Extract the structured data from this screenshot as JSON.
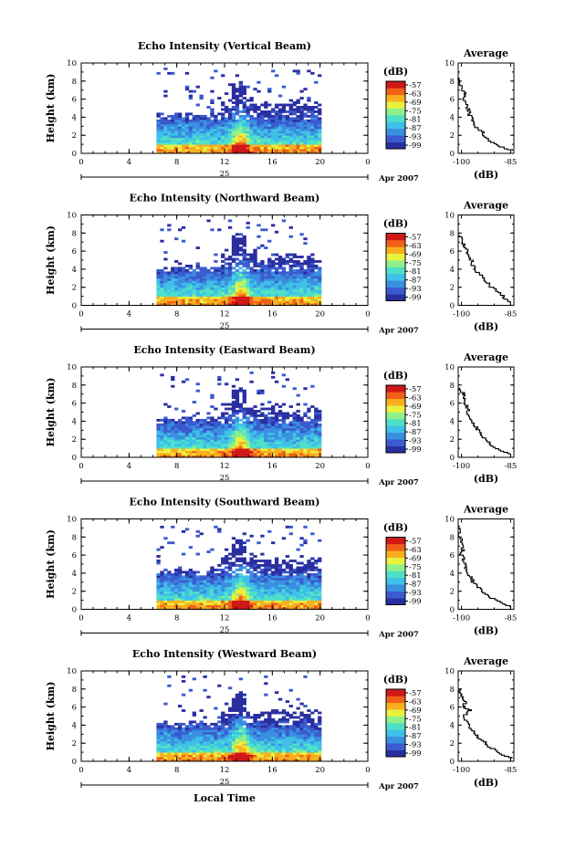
{
  "chart_data": [
    {
      "type": "heatmap",
      "title": "Echo Intensity (Vertical Beam)",
      "ylabel": "Height (km)",
      "x_ticks": [
        "0",
        "4",
        "8",
        "12",
        "16",
        "20",
        "0"
      ],
      "y_ticks": [
        "0",
        "2",
        "4",
        "6",
        "8",
        "10"
      ],
      "xlim": [
        0,
        24
      ],
      "ylim": [
        0,
        10
      ],
      "date_day": "25",
      "date_month": "Apr 2007",
      "colorbar": {
        "unit": "(dB)",
        "ticks": [
          "-57",
          "-63",
          "-69",
          "-75",
          "-81",
          "-87",
          "-93",
          "-99"
        ]
      },
      "profile": {
        "title": "Average",
        "xlabel": "(dB)",
        "x_ticks": [
          "-100",
          "-85"
        ],
        "y_ticks": [
          "0",
          "2",
          "4",
          "6",
          "8",
          "10"
        ],
        "xlim": [
          -101,
          -84
        ],
        "ylim": [
          0,
          10
        ],
        "points": [
          [
            -85,
            0.3
          ],
          [
            -88,
            0.7
          ],
          [
            -91,
            1.2
          ],
          [
            -93,
            1.8
          ],
          [
            -94,
            2.4
          ],
          [
            -96,
            3.0
          ],
          [
            -96.5,
            3.6
          ],
          [
            -97.5,
            4.2
          ],
          [
            -98,
            4.8
          ],
          [
            -98.5,
            5.4
          ],
          [
            -99.5,
            6.0
          ],
          [
            -99,
            6.6
          ],
          [
            -100,
            7.2
          ],
          [
            -100.5,
            7.8
          ],
          [
            -100.5,
            8.3
          ]
        ]
      }
    },
    {
      "type": "heatmap",
      "title": "Echo Intensity (Northward Beam)",
      "ylabel": "Height (km)",
      "x_ticks": [
        "0",
        "4",
        "8",
        "12",
        "16",
        "20",
        "0"
      ],
      "y_ticks": [
        "0",
        "2",
        "4",
        "6",
        "8",
        "10"
      ],
      "xlim": [
        0,
        24
      ],
      "ylim": [
        0,
        10
      ],
      "date_day": "25",
      "date_month": "Apr 2007",
      "colorbar": {
        "unit": "(dB)",
        "ticks": [
          "-57",
          "-63",
          "-69",
          "-75",
          "-81",
          "-87",
          "-93",
          "-99"
        ]
      },
      "profile": {
        "title": "Average",
        "xlabel": "(dB)",
        "x_ticks": [
          "-100",
          "-85"
        ],
        "y_ticks": [
          "0",
          "2",
          "4",
          "6",
          "8",
          "10"
        ],
        "xlim": [
          -101,
          -84
        ],
        "ylim": [
          0,
          10
        ],
        "points": [
          [
            -85,
            0.3
          ],
          [
            -87,
            0.8
          ],
          [
            -89,
            1.4
          ],
          [
            -91,
            2.0
          ],
          [
            -92.5,
            2.6
          ],
          [
            -94,
            3.2
          ],
          [
            -95.5,
            3.8
          ],
          [
            -96.5,
            4.4
          ],
          [
            -97,
            5.0
          ],
          [
            -98,
            5.6
          ],
          [
            -98.5,
            6.2
          ],
          [
            -99.5,
            6.8
          ],
          [
            -100,
            7.3
          ],
          [
            -100.5,
            7.7
          ]
        ]
      }
    },
    {
      "type": "heatmap",
      "title": "Echo Intensity (Eastward Beam)",
      "ylabel": "Height (km)",
      "x_ticks": [
        "0",
        "4",
        "8",
        "12",
        "16",
        "20",
        "0"
      ],
      "y_ticks": [
        "0",
        "2",
        "4",
        "6",
        "8",
        "10"
      ],
      "xlim": [
        0,
        24
      ],
      "ylim": [
        0,
        10
      ],
      "date_day": "25",
      "date_month": "Apr 2007",
      "colorbar": {
        "unit": "(dB)",
        "ticks": [
          "-57",
          "-63",
          "-69",
          "-75",
          "-81",
          "-87",
          "-93",
          "-99"
        ]
      },
      "profile": {
        "title": "Average",
        "xlabel": "(dB)",
        "x_ticks": [
          "-100",
          "-85"
        ],
        "y_ticks": [
          "0",
          "2",
          "4",
          "6",
          "8",
          "10"
        ],
        "xlim": [
          -101,
          -84
        ],
        "ylim": [
          0,
          10
        ],
        "points": [
          [
            -85,
            0.3
          ],
          [
            -89,
            0.8
          ],
          [
            -91.5,
            1.4
          ],
          [
            -93,
            2.0
          ],
          [
            -94,
            2.6
          ],
          [
            -95.5,
            3.2
          ],
          [
            -96.5,
            3.8
          ],
          [
            -97.5,
            4.4
          ],
          [
            -98,
            5.0
          ],
          [
            -98.5,
            5.6
          ],
          [
            -99.5,
            6.2
          ],
          [
            -99,
            6.8
          ],
          [
            -100,
            7.3
          ],
          [
            -100.5,
            7.7
          ]
        ]
      }
    },
    {
      "type": "heatmap",
      "title": "Echo Intensity (Southward Beam)",
      "ylabel": "Height (km)",
      "x_ticks": [
        "0",
        "4",
        "8",
        "12",
        "16",
        "20",
        "0"
      ],
      "y_ticks": [
        "0",
        "2",
        "4",
        "6",
        "8",
        "10"
      ],
      "xlim": [
        0,
        24
      ],
      "ylim": [
        0,
        10
      ],
      "date_day": "25",
      "date_month": "Apr 2007",
      "colorbar": {
        "unit": "(dB)",
        "ticks": [
          "-57",
          "-63",
          "-69",
          "-75",
          "-81",
          "-87",
          "-93",
          "-99"
        ]
      },
      "profile": {
        "title": "Average",
        "xlabel": "(dB)",
        "x_ticks": [
          "-100",
          "-85"
        ],
        "y_ticks": [
          "0",
          "2",
          "4",
          "6",
          "8",
          "10"
        ],
        "xlim": [
          -101,
          -84
        ],
        "ylim": [
          0,
          10
        ],
        "points": [
          [
            -85,
            0.2
          ],
          [
            -88,
            0.6
          ],
          [
            -91,
            1.2
          ],
          [
            -93,
            1.8
          ],
          [
            -95,
            2.4
          ],
          [
            -96.5,
            3.0
          ],
          [
            -97.5,
            3.6
          ],
          [
            -98.5,
            4.2
          ],
          [
            -99,
            4.8
          ],
          [
            -99.5,
            5.4
          ],
          [
            -100,
            6.0
          ],
          [
            -99.5,
            6.6
          ],
          [
            -100,
            7.4
          ],
          [
            -100.5,
            8.2
          ],
          [
            -100.5,
            9.2
          ]
        ]
      }
    },
    {
      "type": "heatmap",
      "title": "Echo Intensity (Westward Beam)",
      "ylabel": "Height (km)",
      "xlabel": "Local Time",
      "x_ticks": [
        "0",
        "4",
        "8",
        "12",
        "16",
        "20",
        "0"
      ],
      "y_ticks": [
        "0",
        "2",
        "4",
        "6",
        "8",
        "10"
      ],
      "xlim": [
        0,
        24
      ],
      "ylim": [
        0,
        10
      ],
      "date_day": "25",
      "date_month": "Apr 2007",
      "colorbar": {
        "unit": "(dB)",
        "ticks": [
          "-57",
          "-63",
          "-69",
          "-75",
          "-81",
          "-87",
          "-93",
          "-99"
        ]
      },
      "profile": {
        "title": "Average",
        "xlabel": "(dB)",
        "x_ticks": [
          "-100",
          "-85"
        ],
        "y_ticks": [
          "0",
          "2",
          "4",
          "6",
          "8",
          "10"
        ],
        "xlim": [
          -101,
          -84
        ],
        "ylim": [
          0,
          10
        ],
        "points": [
          [
            -85,
            0.3
          ],
          [
            -88,
            0.8
          ],
          [
            -91,
            1.4
          ],
          [
            -93,
            2.0
          ],
          [
            -95,
            2.6
          ],
          [
            -96.5,
            3.2
          ],
          [
            -97.5,
            3.8
          ],
          [
            -98.5,
            4.4
          ],
          [
            -99,
            5.0
          ],
          [
            -97.5,
            5.6
          ],
          [
            -99.5,
            6.0
          ],
          [
            -98.5,
            6.5
          ],
          [
            -100,
            7.0
          ],
          [
            -100.5,
            7.6
          ],
          [
            -100.5,
            8.0
          ]
        ]
      }
    }
  ],
  "colormap": [
    "#2a2fa0",
    "#3b5bd0",
    "#3a8fe0",
    "#3fc0e8",
    "#4fe0c8",
    "#8ef088",
    "#e8f040",
    "#f8b020",
    "#f06018",
    "#d01818"
  ]
}
